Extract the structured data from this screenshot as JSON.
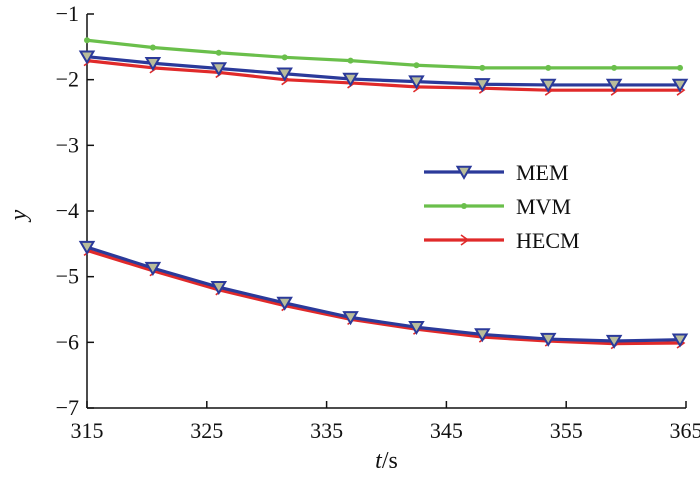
{
  "chart_data": {
    "type": "line",
    "xlabel_italic": "t",
    "xlabel_rest": "/s",
    "ylabel": "y",
    "xlim": [
      315,
      365
    ],
    "ylim": [
      -7,
      -1
    ],
    "xticks": [
      315,
      325,
      335,
      345,
      355,
      365
    ],
    "yticks": [
      -1,
      -2,
      -3,
      -4,
      -5,
      -6,
      -7
    ],
    "ytick_labels": [
      "−1",
      "−2",
      "−3",
      "−4",
      "−5",
      "−6",
      "−7"
    ],
    "grid": false,
    "legend_position": "right",
    "x": [
      315,
      320.5,
      326,
      331.5,
      337,
      342.5,
      348,
      353.5,
      359,
      364.5
    ],
    "series": [
      {
        "name": "MEM",
        "color": "#2b3a9a",
        "marker": "triangle-down-icon",
        "groups": [
          [
            -1.65,
            -1.75,
            -1.83,
            -1.91,
            -1.99,
            -2.03,
            -2.07,
            -2.08,
            -2.08,
            -2.08
          ],
          [
            -4.55,
            -4.87,
            -5.16,
            -5.4,
            -5.62,
            -5.77,
            -5.88,
            -5.95,
            -5.98,
            -5.96
          ]
        ]
      },
      {
        "name": "MVM",
        "color": "#6abf4b",
        "marker": "dot-icon",
        "groups": [
          [
            -1.4,
            -1.51,
            -1.59,
            -1.66,
            -1.71,
            -1.78,
            -1.82,
            -1.82,
            -1.82,
            -1.82
          ]
        ]
      },
      {
        "name": "HECM",
        "color": "#e02a2a",
        "marker": "chevron-right-icon",
        "groups": [
          [
            -1.71,
            -1.82,
            -1.89,
            -2.0,
            -2.05,
            -2.11,
            -2.13,
            -2.16,
            -2.16,
            -2.16
          ],
          [
            -4.6,
            -4.91,
            -5.2,
            -5.44,
            -5.65,
            -5.8,
            -5.92,
            -5.98,
            -6.02,
            -6.01
          ]
        ]
      }
    ]
  }
}
